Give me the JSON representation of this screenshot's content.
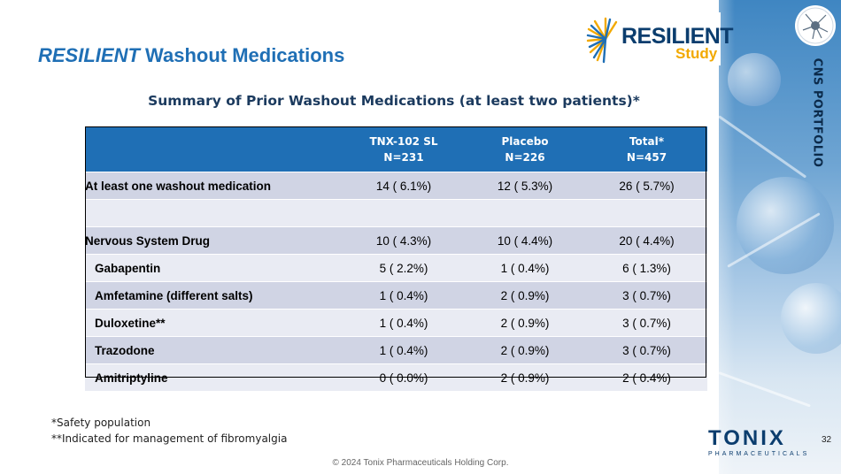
{
  "header": {
    "title_italic": "RESILIENT",
    "title_rest": " Washout Medications"
  },
  "logo": {
    "word": "RESILIENT",
    "sub": "Study"
  },
  "side": {
    "label": "CNS PORTFOLIO"
  },
  "subtitle": "Summary of Prior Washout Medications (at least two patients)*",
  "table": {
    "columns": [
      {
        "name": "TNX-102 SL",
        "n": "N=231"
      },
      {
        "name": "Placebo",
        "n": "N=226"
      },
      {
        "name": "Total*",
        "n": "N=457"
      }
    ],
    "rows": [
      {
        "label": "At least one washout medication",
        "values": [
          "14 ( 6.1%)",
          "12 ( 5.3%)",
          "26 ( 5.7%)"
        ]
      },
      {
        "label": "",
        "values": [
          "",
          "",
          ""
        ]
      },
      {
        "label": "Nervous System Drug",
        "values": [
          "10 ( 4.3%)",
          "10 ( 4.4%)",
          "20 ( 4.4%)"
        ]
      },
      {
        "label": "Gabapentin",
        "values": [
          "5 ( 2.2%)",
          "1 ( 0.4%)",
          "6 ( 1.3%)"
        ]
      },
      {
        "label": "Amfetamine (different salts)",
        "values": [
          "1 ( 0.4%)",
          "2 ( 0.9%)",
          "3 ( 0.7%)"
        ]
      },
      {
        "label": "Duloxetine**",
        "values": [
          "1 ( 0.4%)",
          "2 ( 0.9%)",
          "3 ( 0.7%)"
        ]
      },
      {
        "label": "Trazodone",
        "values": [
          "1 ( 0.4%)",
          "2 ( 0.9%)",
          "3 ( 0.7%)"
        ]
      },
      {
        "label": "Amitriptyline",
        "values": [
          "0 ( 0.0%)",
          "2 ( 0.9%)",
          "2 ( 0.4%)"
        ]
      }
    ]
  },
  "footnotes": [
    "*Safety population",
    "**Indicated for management of fibromyalgia"
  ],
  "page_number": "32",
  "copyright": "© 2024 Tonix Pharmaceuticals Holding Corp.",
  "company": {
    "word": "TONIX",
    "sub": "PHARMACEUTICALS"
  },
  "colors": {
    "accent": "#1f6fb5",
    "navy": "#0b3d6e",
    "gold": "#f2a900",
    "row_shade": "#d0d4e4",
    "row_light": "#e9ebf3"
  }
}
